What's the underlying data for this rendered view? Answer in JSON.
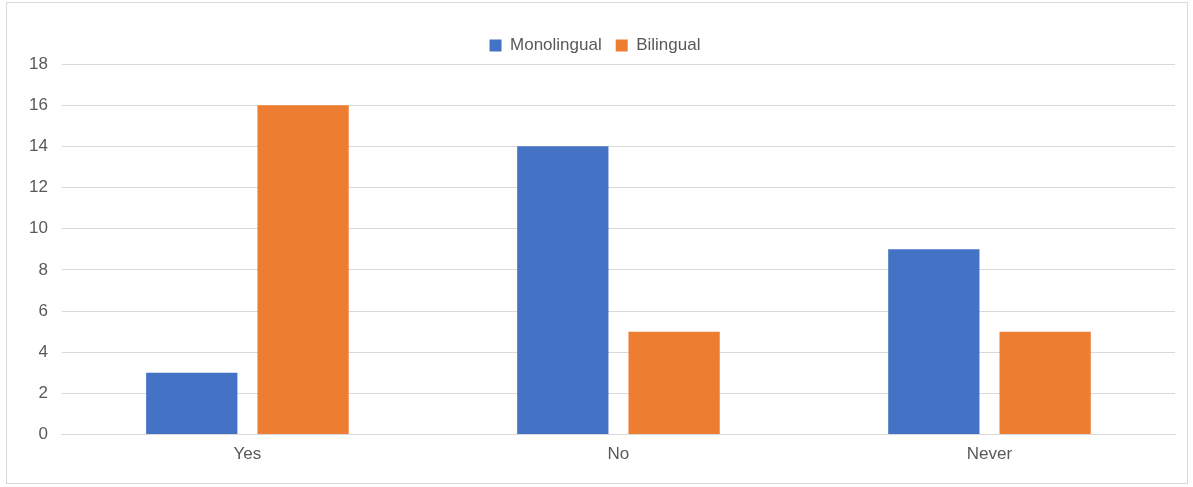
{
  "chart_data": {
    "type": "bar",
    "categories": [
      "Yes",
      "No",
      "Never"
    ],
    "series": [
      {
        "name": "Monolingual",
        "color": "#4472c4",
        "values": [
          3,
          14,
          9
        ]
      },
      {
        "name": "Bilingual",
        "color": "#ed7d31",
        "values": [
          16,
          5,
          5
        ]
      }
    ],
    "ylim": [
      0,
      18
    ],
    "yticks": [
      0,
      2,
      4,
      6,
      8,
      10,
      12,
      14,
      16,
      18
    ],
    "grid": "y",
    "legend": "top"
  }
}
